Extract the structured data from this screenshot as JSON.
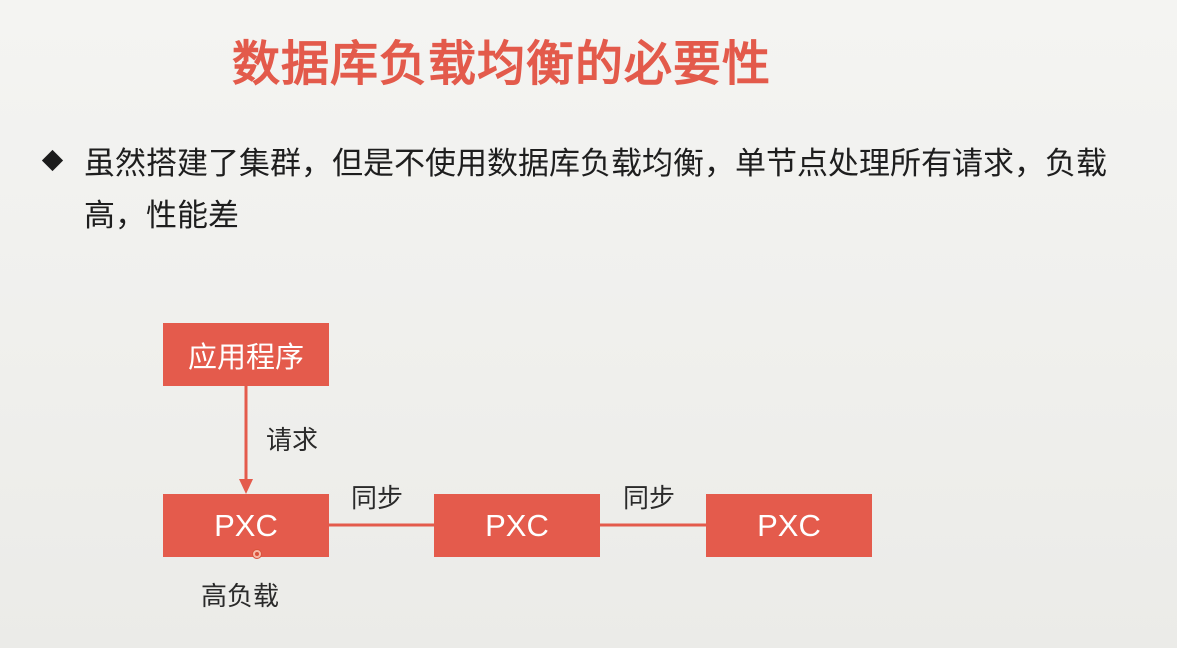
{
  "slide": {
    "title": "数据库负载均衡的必要性",
    "title_color": "#e35a4b",
    "bullet_icon": "diamond-bullet-icon",
    "bullet_text": "虽然搭建了集群，但是不使用数据库负载均衡，单节点处理所有请求，负载高，性能差"
  },
  "diagram": {
    "box_color": "#e45b4c",
    "app_box": "应用程序",
    "request_label": "请求",
    "nodes": [
      "PXC",
      "PXC",
      "PXC"
    ],
    "sync_labels": [
      "同步",
      "同步"
    ],
    "high_load_label": "高负载"
  }
}
